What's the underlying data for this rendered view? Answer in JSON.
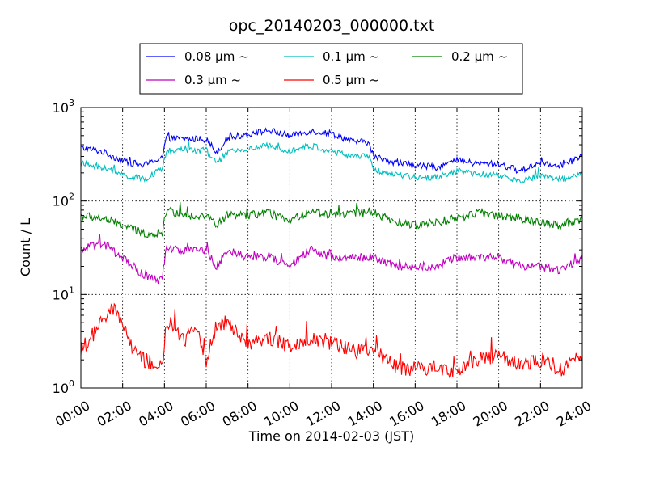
{
  "chart_data": {
    "type": "line",
    "title": "opc_20140203_000000.txt",
    "xlabel": "Time on 2014-02-03 (JST)",
    "ylabel": "Count / L",
    "xlim_hours": [
      0,
      24
    ],
    "x_tick_labels": [
      "00:00",
      "02:00",
      "04:00",
      "06:00",
      "08:00",
      "10:00",
      "12:00",
      "14:00",
      "16:00",
      "18:00",
      "20:00",
      "22:00",
      "24:00"
    ],
    "y_scale": "log",
    "ylim": [
      1,
      1000
    ],
    "y_ticks": [
      {
        "value": 1,
        "base": "10",
        "exp": "0"
      },
      {
        "value": 10,
        "base": "10",
        "exp": "1"
      },
      {
        "value": 100,
        "base": "10",
        "exp": "2"
      },
      {
        "value": 1000,
        "base": "10",
        "exp": "3"
      }
    ],
    "grid": true,
    "legend_position": "top-center",
    "series": [
      {
        "name": "0.08 μm ~",
        "color": "#0000ff",
        "x": [
          "00:00",
          "01:00",
          "02:00",
          "03:00",
          "03:55",
          "04:05",
          "05:00",
          "06:00",
          "06:30",
          "07:00",
          "08:00",
          "09:00",
          "10:00",
          "11:00",
          "12:00",
          "13:00",
          "13:45",
          "14:00",
          "15:00",
          "16:00",
          "17:00",
          "18:00",
          "19:00",
          "20:00",
          "21:00",
          "22:00",
          "23:00",
          "24:00"
        ],
        "y": [
          370,
          340,
          270,
          240,
          300,
          470,
          460,
          460,
          330,
          470,
          520,
          570,
          500,
          560,
          530,
          430,
          430,
          300,
          260,
          240,
          230,
          270,
          250,
          250,
          210,
          260,
          240,
          300
        ]
      },
      {
        "name": "0.1 μm ~",
        "color": "#00bfbf",
        "x": [
          "00:00",
          "01:00",
          "02:00",
          "03:00",
          "03:55",
          "04:05",
          "05:00",
          "06:00",
          "06:30",
          "07:00",
          "08:00",
          "09:00",
          "10:00",
          "11:00",
          "12:00",
          "13:00",
          "13:45",
          "14:00",
          "15:00",
          "16:00",
          "17:00",
          "18:00",
          "19:00",
          "20:00",
          "21:00",
          "22:00",
          "23:00",
          "24:00"
        ],
        "y": [
          250,
          230,
          190,
          170,
          220,
          340,
          350,
          350,
          250,
          330,
          360,
          390,
          350,
          390,
          340,
          300,
          300,
          220,
          190,
          180,
          180,
          210,
          190,
          190,
          160,
          190,
          170,
          200
        ]
      },
      {
        "name": "0.2 μm ~",
        "color": "#008000",
        "x": [
          "00:00",
          "01:00",
          "02:00",
          "03:00",
          "03:55",
          "04:05",
          "05:00",
          "06:00",
          "06:30",
          "07:00",
          "08:00",
          "09:00",
          "10:00",
          "11:00",
          "12:00",
          "13:00",
          "14:00",
          "15:00",
          "16:00",
          "17:00",
          "18:00",
          "19:00",
          "20:00",
          "21:00",
          "22:00",
          "23:00",
          "24:00"
        ],
        "y": [
          70,
          65,
          55,
          45,
          45,
          80,
          70,
          70,
          55,
          70,
          70,
          75,
          60,
          80,
          70,
          75,
          75,
          60,
          55,
          60,
          65,
          75,
          70,
          65,
          60,
          55,
          65
        ]
      },
      {
        "name": "0.3 μm ~",
        "color": "#bf00bf",
        "x": [
          "00:00",
          "01:00",
          "02:00",
          "03:00",
          "03:55",
          "04:05",
          "05:00",
          "06:00",
          "06:30",
          "07:00",
          "08:00",
          "09:00",
          "10:00",
          "11:00",
          "12:00",
          "13:00",
          "14:00",
          "15:00",
          "16:00",
          "17:00",
          "18:00",
          "19:00",
          "20:00",
          "21:00",
          "22:00",
          "23:00",
          "24:00"
        ],
        "y": [
          30,
          35,
          25,
          16,
          14,
          30,
          30,
          30,
          20,
          30,
          25,
          25,
          20,
          30,
          25,
          25,
          25,
          20,
          20,
          20,
          25,
          25,
          25,
          20,
          20,
          18,
          25
        ]
      },
      {
        "name": "0.5 μm ~",
        "color": "#ff0000",
        "x": [
          "00:00",
          "00:30",
          "01:00",
          "01:30",
          "02:00",
          "02:30",
          "03:00",
          "03:30",
          "03:55",
          "04:05",
          "04:30",
          "05:00",
          "05:30",
          "06:00",
          "06:30",
          "07:00",
          "08:00",
          "09:00",
          "10:00",
          "11:00",
          "12:00",
          "13:00",
          "14:00",
          "15:00",
          "16:00",
          "17:00",
          "18:00",
          "19:00",
          "20:00",
          "21:00",
          "22:00",
          "23:00",
          "24:00"
        ],
        "y": [
          2.5,
          3.5,
          5,
          7,
          5,
          2.5,
          2,
          1.8,
          1.6,
          5,
          4.5,
          3,
          5,
          2,
          5,
          5,
          3,
          3.5,
          2.8,
          3.5,
          3,
          2.5,
          2.5,
          1.7,
          1.6,
          1.7,
          1.5,
          2,
          2.2,
          1.7,
          2,
          1.6,
          2.2
        ]
      }
    ]
  }
}
